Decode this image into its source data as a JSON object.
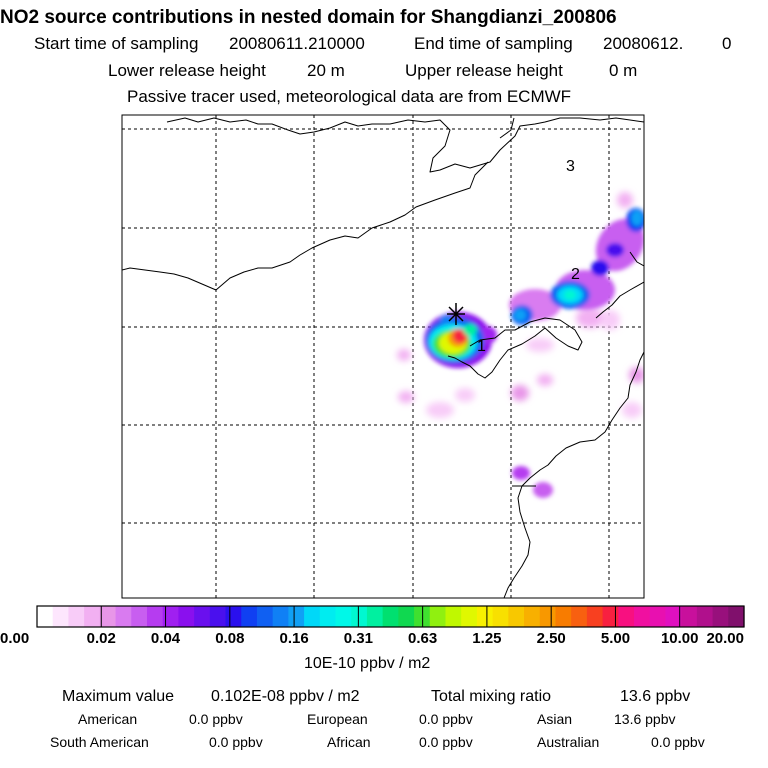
{
  "header": {
    "title": "NO2 source contributions in nested domain for Shangdianzi_200806",
    "start_label": "Start time of sampling",
    "start_value": "20080611.210000",
    "end_label": "End time of sampling",
    "end_value": "20080612.",
    "end_extra": "0",
    "lower_label": "Lower release height",
    "lower_value": "20 m",
    "upper_label": "Upper release height",
    "upper_value": "0 m",
    "note": "Passive tracer used, meteorological data are from ECMWF"
  },
  "chart_data": {
    "type": "heatmap",
    "title": "NO2 source contributions in nested domain for Shangdianzi_200806",
    "units": "10E-10 ppbv / m2",
    "grid": true,
    "markers": [
      "1",
      "2",
      "3"
    ],
    "receptor": "Shangdianzi",
    "colorbar": {
      "tick_labels": [
        "0.00",
        "0.02",
        "0.04",
        "0.08",
        "0.16",
        "0.31",
        "0.63",
        "1.25",
        "2.50",
        "5.00",
        "10.00",
        "20.00"
      ],
      "tick_values": [
        0.0,
        0.02,
        0.04,
        0.08,
        0.16,
        0.31,
        0.63,
        1.25,
        2.5,
        5.0,
        10.0,
        20.0
      ],
      "colors": [
        "#ffffff",
        "#fde6fd",
        "#f8ccf8",
        "#f2b0f2",
        "#e896e8",
        "#d97bf0",
        "#c85ef0",
        "#b63cf0",
        "#a020f0",
        "#8a10ee",
        "#6a10ee",
        "#4a10ee",
        "#2a10ee",
        "#1040f2",
        "#1060f2",
        "#1080f5",
        "#10a0f5",
        "#00d8f8",
        "#00ecf0",
        "#00f8e8",
        "#00f8d0",
        "#00f0a0",
        "#00e070",
        "#10d850",
        "#40e030",
        "#90f010",
        "#c0f800",
        "#e0f800",
        "#f8f000",
        "#f8e000",
        "#f8c800",
        "#f8b000",
        "#f89800",
        "#f87c00",
        "#f86010",
        "#f84020",
        "#f82040",
        "#f81080",
        "#f010a0",
        "#e810b0",
        "#e010c0",
        "#c8109c",
        "#b0108c",
        "#98107c",
        "#80106c"
      ]
    }
  },
  "stats": {
    "max_label": "Maximum value",
    "max_value": "0.102E-08 ppbv / m2",
    "total_label": "Total mixing ratio",
    "total_value": "13.6 ppbv"
  },
  "regions": {
    "american_label": "American",
    "american_value": "0.0 ppbv",
    "european_label": "European",
    "european_value": "0.0 ppbv",
    "asian_label": "Asian",
    "asian_value": "13.6 ppbv",
    "south_american_label": "South American",
    "south_american_value": "0.0 ppbv",
    "african_label": "African",
    "african_value": "0.0 ppbv",
    "australian_label": "Australian",
    "australian_value": "0.0 ppbv"
  }
}
